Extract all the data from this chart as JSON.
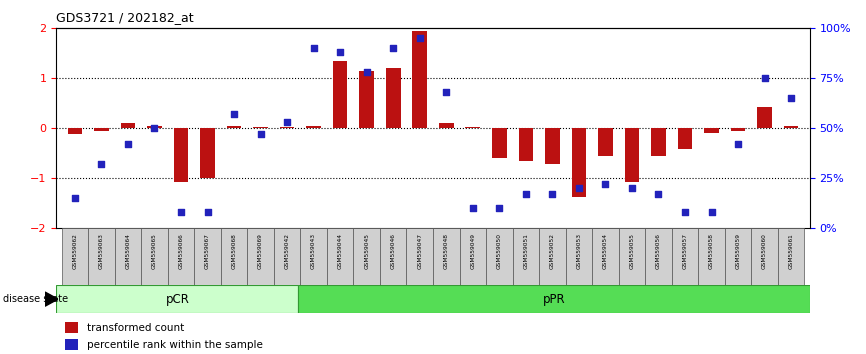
{
  "title": "GDS3721 / 202182_at",
  "samples": [
    "GSM559062",
    "GSM559063",
    "GSM559064",
    "GSM559065",
    "GSM559066",
    "GSM559067",
    "GSM559068",
    "GSM559069",
    "GSM559042",
    "GSM559043",
    "GSM559044",
    "GSM559045",
    "GSM559046",
    "GSM559047",
    "GSM559048",
    "GSM559049",
    "GSM559050",
    "GSM559051",
    "GSM559052",
    "GSM559053",
    "GSM559054",
    "GSM559055",
    "GSM559056",
    "GSM559057",
    "GSM559058",
    "GSM559059",
    "GSM559060",
    "GSM559061"
  ],
  "transformed_count": [
    -0.12,
    -0.05,
    0.1,
    0.05,
    -1.08,
    -1.0,
    0.05,
    0.02,
    0.02,
    0.05,
    1.35,
    1.15,
    1.2,
    1.95,
    0.1,
    0.02,
    -0.6,
    -0.65,
    -0.72,
    -1.38,
    -0.55,
    -1.08,
    -0.55,
    -0.42,
    -0.1,
    -0.05,
    0.42,
    0.05
  ],
  "percentile_rank": [
    15,
    32,
    42,
    50,
    8,
    8,
    57,
    47,
    53,
    90,
    88,
    78,
    90,
    95,
    68,
    10,
    10,
    17,
    17,
    20,
    22,
    20,
    17,
    8,
    8,
    42,
    75,
    65
  ],
  "pcr_count": 9,
  "ppr_count": 19,
  "bar_color": "#bb1111",
  "dot_color": "#2222bb",
  "pcr_facecolor": "#ccffcc",
  "ppr_facecolor": "#55dd55",
  "ylim": [
    -2.0,
    2.0
  ],
  "y2lim": [
    0,
    100
  ],
  "dotted_lines": [
    -1.0,
    0.0,
    1.0
  ],
  "yticks": [
    -2,
    -1,
    0,
    1,
    2
  ],
  "y2ticks": [
    0,
    25,
    50,
    75,
    100
  ],
  "y2ticklabels": [
    "0%",
    "25%",
    "50%",
    "75%",
    "100%"
  ]
}
